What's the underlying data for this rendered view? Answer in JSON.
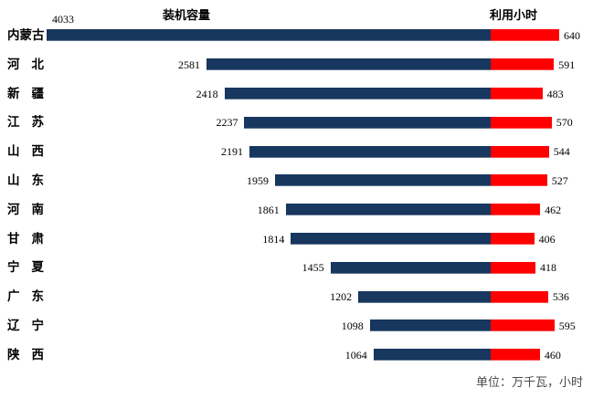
{
  "header": {
    "capacity_title": "装机容量",
    "hours_title": "利用小时"
  },
  "footnote": "单位：万千瓦，小时",
  "colors": {
    "capacity_bar": "#17375E",
    "hours_bar": "#FE0000",
    "text": "#000000",
    "note_text": "#4a4a4a",
    "background": "#ffffff"
  },
  "chart_data": {
    "type": "bar",
    "orientation": "horizontal-diverging",
    "title_left": "装机容量",
    "title_right": "利用小时",
    "unit_note": "单位：万千瓦，小时",
    "legend_position": "none",
    "grid": false,
    "categories": [
      "内蒙古",
      "河北",
      "新疆",
      "江苏",
      "山西",
      "山东",
      "河南",
      "甘肃",
      "宁夏",
      "广东",
      "辽宁",
      "陕西"
    ],
    "series": [
      {
        "name": "装机容量",
        "direction": "left",
        "color": "#17375E",
        "values": [
          4033,
          2581,
          2418,
          2237,
          2191,
          1959,
          1861,
          1814,
          1455,
          1202,
          1098,
          1064
        ]
      },
      {
        "name": "利用小时",
        "direction": "right",
        "color": "#FE0000",
        "values": [
          640,
          591,
          483,
          570,
          544,
          527,
          462,
          406,
          418,
          536,
          595,
          460
        ]
      }
    ],
    "xlim_capacity": [
      0,
      4033
    ],
    "xlim_hours": [
      0,
      640
    ]
  }
}
